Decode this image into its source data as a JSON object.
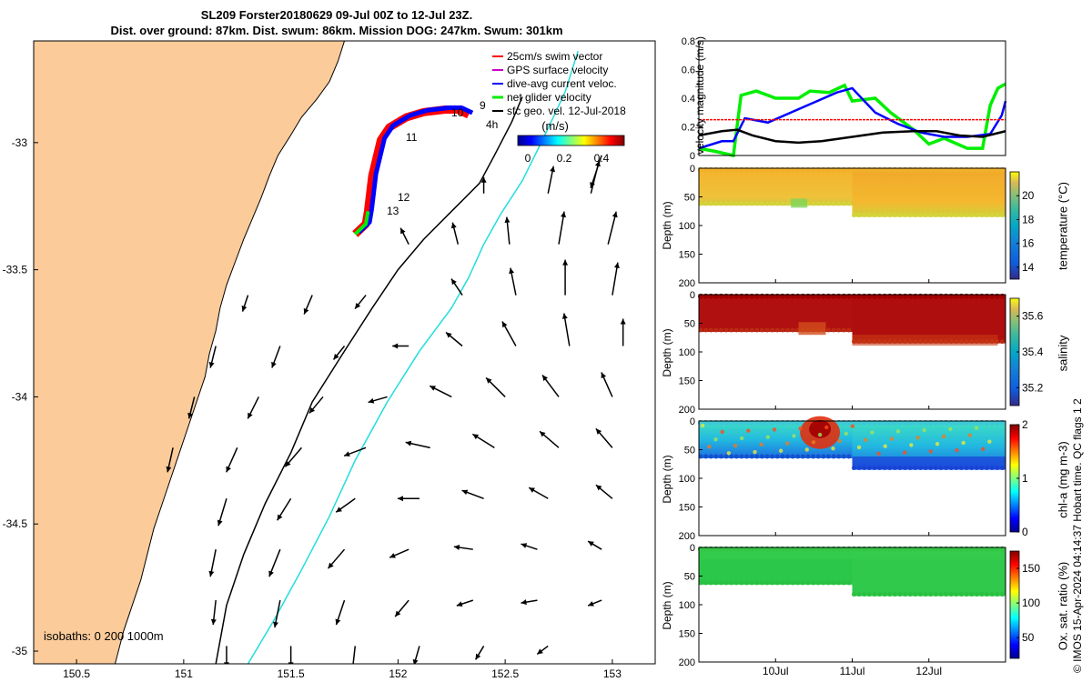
{
  "title": {
    "line1": "SL209 Forster20180629 09-Jul 00Z to 12-Jul 23Z.",
    "line2": "Dist. over ground: 87km. Dist. swum: 86km. Mission DOG: 247km. Swum: 301km"
  },
  "side_note": "© IMOS 15-Apr-2024 04:14:37 Hobart time. QC flags 1  2",
  "colors": {
    "land": "#fbcb9a",
    "swim_vector": "#ff0000",
    "gps_velocity": "#cc00cc",
    "dive_current": "#0000ff",
    "net_glider": "#00ee00",
    "sfc_geo": "#000000",
    "isobath_200": "#000000",
    "isobath_1000": "#22dddd"
  },
  "chart_data": [
    {
      "type": "map",
      "xlim": [
        150.3,
        153.2
      ],
      "ylim": [
        -35.05,
        -32.6
      ],
      "xticks": [
        "150.5",
        "151",
        "151.5",
        "152",
        "152.5",
        "153"
      ],
      "yticks": [
        "-33",
        "-33.5",
        "-34",
        "-34.5",
        "-35"
      ],
      "legend": {
        "placement": "top-right",
        "items": [
          {
            "label": "25cm/s swim vector",
            "color": "#ff0000"
          },
          {
            "label": "GPS surface velocity",
            "color": "#cc00cc"
          },
          {
            "label": "dive-avg current veloc.",
            "color": "#0000ff"
          },
          {
            "label": "net glider velocity",
            "color": "#00ee00"
          },
          {
            "label": "sfc geo. vel. 12-Jul-2018",
            "color": "#000000"
          }
        ]
      },
      "colorbar": {
        "label": "(m/s)",
        "ticks": [
          "0",
          "0.2",
          "0.4"
        ],
        "range": [
          0,
          0.5
        ]
      },
      "day_labels": [
        "9",
        "10",
        "11",
        "12",
        "13"
      ],
      "interval_label": "4h",
      "isobaths_label": "isobaths: 0  200  1000m",
      "track": [
        [
          152.33,
          -32.89
        ],
        [
          152.28,
          -32.87
        ],
        [
          152.22,
          -32.87
        ],
        [
          152.12,
          -32.88
        ],
        [
          152.04,
          -32.9
        ],
        [
          151.96,
          -32.94
        ],
        [
          151.92,
          -32.99
        ],
        [
          151.9,
          -33.06
        ],
        [
          151.88,
          -33.13
        ],
        [
          151.87,
          -33.2
        ],
        [
          151.86,
          -33.27
        ],
        [
          151.85,
          -33.32
        ],
        [
          151.8,
          -33.36
        ]
      ],
      "isobath_200": [
        [
          152.58,
          -32.82
        ],
        [
          152.53,
          -32.92
        ],
        [
          152.45,
          -33.05
        ],
        [
          152.38,
          -33.16
        ],
        [
          152.25,
          -33.27
        ],
        [
          152.12,
          -33.38
        ],
        [
          152.0,
          -33.5
        ],
        [
          151.88,
          -33.65
        ],
        [
          151.75,
          -33.82
        ],
        [
          151.6,
          -34.02
        ],
        [
          151.5,
          -34.22
        ],
        [
          151.38,
          -34.42
        ],
        [
          151.28,
          -34.62
        ],
        [
          151.2,
          -34.82
        ],
        [
          151.15,
          -35.05
        ]
      ],
      "isobath_1000": [
        [
          152.84,
          -32.64
        ],
        [
          152.78,
          -32.8
        ],
        [
          152.68,
          -32.98
        ],
        [
          152.58,
          -33.15
        ],
        [
          152.48,
          -33.28
        ],
        [
          152.4,
          -33.4
        ],
        [
          152.33,
          -33.53
        ],
        [
          152.25,
          -33.65
        ],
        [
          152.1,
          -33.82
        ],
        [
          151.95,
          -34.02
        ],
        [
          151.8,
          -34.25
        ],
        [
          151.68,
          -34.47
        ],
        [
          151.55,
          -34.68
        ],
        [
          151.42,
          -34.88
        ],
        [
          151.3,
          -35.05
        ]
      ],
      "coast": [
        [
          151.75,
          -32.6
        ],
        [
          151.72,
          -32.68
        ],
        [
          151.68,
          -32.76
        ],
        [
          151.62,
          -32.83
        ],
        [
          151.55,
          -32.9
        ],
        [
          151.5,
          -32.97
        ],
        [
          151.44,
          -33.05
        ],
        [
          151.4,
          -33.13
        ],
        [
          151.36,
          -33.22
        ],
        [
          151.32,
          -33.3
        ],
        [
          151.28,
          -33.38
        ],
        [
          151.24,
          -33.47
        ],
        [
          151.2,
          -33.56
        ],
        [
          151.17,
          -33.65
        ],
        [
          151.15,
          -33.74
        ],
        [
          151.12,
          -33.83
        ],
        [
          151.1,
          -33.92
        ],
        [
          151.06,
          -34.02
        ],
        [
          151.02,
          -34.12
        ],
        [
          150.98,
          -34.22
        ],
        [
          150.94,
          -34.32
        ],
        [
          150.9,
          -34.42
        ],
        [
          150.86,
          -34.52
        ],
        [
          150.83,
          -34.62
        ],
        [
          150.8,
          -34.72
        ],
        [
          150.76,
          -34.82
        ],
        [
          150.72,
          -34.92
        ],
        [
          150.68,
          -35.05
        ]
      ],
      "current_arrows": [
        [
          152.95,
          -33.05,
          -0.04,
          -0.12
        ],
        [
          152.4,
          -33.2,
          0.0,
          0.06
        ],
        [
          152.7,
          -33.2,
          0.02,
          0.1
        ],
        [
          152.9,
          -33.2,
          0.03,
          0.12
        ],
        [
          152.05,
          -33.4,
          -0.03,
          0.06
        ],
        [
          152.28,
          -33.4,
          -0.02,
          0.08
        ],
        [
          152.52,
          -33.4,
          -0.01,
          0.1
        ],
        [
          152.75,
          -33.4,
          0.02,
          0.12
        ],
        [
          152.98,
          -33.4,
          0.03,
          0.12
        ],
        [
          151.3,
          -33.6,
          -0.02,
          -0.06
        ],
        [
          151.6,
          -33.6,
          -0.03,
          -0.07
        ],
        [
          151.85,
          -33.6,
          -0.04,
          -0.05
        ],
        [
          152.3,
          -33.6,
          -0.04,
          0.06
        ],
        [
          152.55,
          -33.6,
          -0.02,
          0.1
        ],
        [
          152.78,
          -33.6,
          0.0,
          0.13
        ],
        [
          153.0,
          -33.6,
          0.02,
          0.12
        ],
        [
          151.15,
          -33.8,
          -0.02,
          -0.08
        ],
        [
          151.45,
          -33.8,
          -0.03,
          -0.08
        ],
        [
          151.75,
          -33.8,
          -0.04,
          -0.05
        ],
        [
          152.05,
          -33.8,
          -0.06,
          0.0
        ],
        [
          152.3,
          -33.8,
          -0.06,
          0.05
        ],
        [
          152.55,
          -33.8,
          -0.05,
          0.09
        ],
        [
          152.8,
          -33.8,
          -0.02,
          0.12
        ],
        [
          153.05,
          -33.8,
          0.0,
          0.1
        ],
        [
          151.05,
          -34.0,
          -0.02,
          -0.08
        ],
        [
          151.35,
          -34.0,
          -0.04,
          -0.08
        ],
        [
          151.65,
          -34.0,
          -0.05,
          -0.06
        ],
        [
          151.95,
          -34.0,
          -0.07,
          -0.02
        ],
        [
          152.25,
          -34.0,
          -0.08,
          0.04
        ],
        [
          152.5,
          -34.0,
          -0.07,
          0.07
        ],
        [
          152.75,
          -34.0,
          -0.06,
          0.08
        ],
        [
          153.0,
          -34.0,
          -0.04,
          0.09
        ],
        [
          150.95,
          -34.2,
          -0.02,
          -0.09
        ],
        [
          151.25,
          -34.2,
          -0.04,
          -0.09
        ],
        [
          151.55,
          -34.2,
          -0.06,
          -0.07
        ],
        [
          151.85,
          -34.2,
          -0.08,
          -0.03
        ],
        [
          152.15,
          -34.2,
          -0.09,
          0.02
        ],
        [
          152.45,
          -34.2,
          -0.08,
          0.05
        ],
        [
          152.75,
          -34.2,
          -0.07,
          0.06
        ],
        [
          153.0,
          -34.2,
          -0.06,
          0.07
        ],
        [
          151.2,
          -34.4,
          -0.03,
          -0.1
        ],
        [
          151.5,
          -34.4,
          -0.05,
          -0.08
        ],
        [
          151.8,
          -34.4,
          -0.07,
          -0.05
        ],
        [
          152.1,
          -34.4,
          -0.08,
          0.0
        ],
        [
          152.4,
          -34.4,
          -0.08,
          0.03
        ],
        [
          152.7,
          -34.4,
          -0.07,
          0.04
        ],
        [
          153.0,
          -34.4,
          -0.06,
          0.05
        ],
        [
          151.15,
          -34.6,
          -0.02,
          -0.1
        ],
        [
          151.45,
          -34.6,
          -0.04,
          -0.1
        ],
        [
          151.75,
          -34.6,
          -0.06,
          -0.07
        ],
        [
          152.05,
          -34.6,
          -0.07,
          -0.03
        ],
        [
          152.35,
          -34.6,
          -0.07,
          0.01
        ],
        [
          152.65,
          -34.6,
          -0.06,
          0.02
        ],
        [
          152.95,
          -34.6,
          -0.05,
          0.03
        ],
        [
          151.15,
          -34.8,
          -0.01,
          -0.09
        ],
        [
          151.45,
          -34.8,
          -0.02,
          -0.1
        ],
        [
          151.75,
          -34.8,
          -0.03,
          -0.09
        ],
        [
          152.05,
          -34.8,
          -0.05,
          -0.06
        ],
        [
          152.35,
          -34.8,
          -0.06,
          -0.02
        ],
        [
          152.65,
          -34.8,
          -0.06,
          -0.01
        ],
        [
          152.95,
          -34.8,
          -0.05,
          -0.02
        ],
        [
          151.2,
          -34.98,
          0.0,
          -0.08
        ],
        [
          151.5,
          -34.98,
          0.0,
          -0.08
        ],
        [
          151.8,
          -34.98,
          -0.01,
          -0.09
        ],
        [
          152.1,
          -34.98,
          -0.02,
          -0.07
        ],
        [
          152.4,
          -34.98,
          -0.03,
          -0.05
        ],
        [
          152.7,
          -34.98,
          -0.04,
          -0.03
        ]
      ]
    },
    {
      "type": "line",
      "ylabel": "velocity magnitude (m/s)",
      "xlim": [
        9.0,
        13.0
      ],
      "ylim": [
        0,
        0.8
      ],
      "yticks": [
        "0",
        "0.2",
        "0.4",
        "0.6",
        "0.8"
      ],
      "series": [
        {
          "color": "#00ee00",
          "x": [
            9.0,
            9.2,
            9.45,
            9.55,
            9.75,
            10.0,
            10.3,
            10.45,
            10.7,
            10.9,
            11.0,
            11.3,
            11.5,
            11.8,
            12.0,
            12.2,
            12.5,
            12.7,
            12.8,
            12.9,
            13.0
          ],
          "y": [
            0.05,
            0.03,
            0.0,
            0.42,
            0.45,
            0.4,
            0.4,
            0.45,
            0.44,
            0.49,
            0.38,
            0.4,
            0.3,
            0.18,
            0.08,
            0.12,
            0.05,
            0.05,
            0.35,
            0.47,
            0.5
          ]
        },
        {
          "color": "#0000ff",
          "x": [
            9.0,
            9.3,
            9.45,
            9.6,
            9.9,
            10.2,
            10.5,
            10.8,
            11.0,
            11.3,
            11.6,
            11.9,
            12.2,
            12.5,
            12.8,
            12.95,
            13.0
          ],
          "y": [
            0.05,
            0.1,
            0.1,
            0.26,
            0.23,
            0.3,
            0.37,
            0.44,
            0.47,
            0.3,
            0.22,
            0.16,
            0.13,
            0.13,
            0.15,
            0.28,
            0.38
          ]
        },
        {
          "color": "#000000",
          "x": [
            9.0,
            9.3,
            9.5,
            9.7,
            10.0,
            10.3,
            10.6,
            11.0,
            11.4,
            11.8,
            12.1,
            12.4,
            12.7,
            13.0
          ],
          "y": [
            0.14,
            0.17,
            0.18,
            0.14,
            0.1,
            0.09,
            0.1,
            0.13,
            0.16,
            0.17,
            0.17,
            0.14,
            0.13,
            0.17
          ]
        },
        {
          "color": "#ff0000",
          "x": [
            9.0,
            13.0
          ],
          "y": [
            0.25,
            0.25
          ]
        }
      ]
    },
    {
      "type": "heatmap",
      "variable": "temperature",
      "ylabel": "Depth (m)",
      "ylim": [
        200,
        0
      ],
      "yticks": [
        "0",
        "50",
        "100",
        "150",
        "200"
      ],
      "colorbar": {
        "label": "temperature (°C)",
        "ticks": [
          "14",
          "16",
          "18",
          "20"
        ],
        "range": [
          13,
          22
        ]
      },
      "profile_depth": [
        {
          "x": [
            9.0,
            11.0
          ],
          "depth": 65
        },
        {
          "x": [
            11.0,
            13.0
          ],
          "depth": 85
        }
      ],
      "values": {
        "surface": 19.7,
        "bottom": 18.3
      }
    },
    {
      "type": "heatmap",
      "variable": "salinity",
      "ylabel": "Depth (m)",
      "ylim": [
        200,
        0
      ],
      "yticks": [
        "0",
        "50",
        "100",
        "150",
        "200"
      ],
      "colorbar": {
        "label": "salinity",
        "ticks": [
          "35.2",
          "35.4",
          "35.6"
        ],
        "range": [
          35.1,
          35.7
        ]
      },
      "profile_depth": [
        {
          "x": [
            9.0,
            11.0
          ],
          "depth": 65
        },
        {
          "x": [
            11.0,
            13.0
          ],
          "depth": 85
        }
      ],
      "values": {
        "surface": 35.7,
        "bottom": 35.6
      }
    },
    {
      "type": "heatmap",
      "variable": "chl-a",
      "ylabel": "Depth (m)",
      "ylim": [
        200,
        0
      ],
      "yticks": [
        "0",
        "50",
        "100",
        "150",
        "200"
      ],
      "colorbar": {
        "label": "chl-a (mg m-3)",
        "ticks": [
          "0",
          "1",
          "2"
        ],
        "range": [
          0,
          2
        ]
      },
      "profile_depth": [
        {
          "x": [
            9.0,
            11.0
          ],
          "depth": 65
        },
        {
          "x": [
            11.0,
            13.0
          ],
          "depth": 85
        }
      ],
      "values": {
        "background": 0.7,
        "patch_high": 1.9,
        "bottom": 0.3
      }
    },
    {
      "type": "heatmap",
      "variable": "oxygen saturation",
      "ylabel": "Depth (m)",
      "ylim": [
        200,
        0
      ],
      "yticks": [
        "0",
        "50",
        "100",
        "150",
        "200"
      ],
      "xticks": [
        "10Jul",
        "11Jul",
        "12Jul"
      ],
      "colorbar": {
        "label": "Ox. sat. ratio (%)",
        "ticks": [
          "50",
          "100",
          "150"
        ],
        "range": [
          20,
          175
        ]
      },
      "profile_depth": [
        {
          "x": [
            9.0,
            11.0
          ],
          "depth": 65
        },
        {
          "x": [
            11.0,
            13.0
          ],
          "depth": 85
        }
      ],
      "values": {
        "surface": 102,
        "bottom": 98
      }
    }
  ]
}
